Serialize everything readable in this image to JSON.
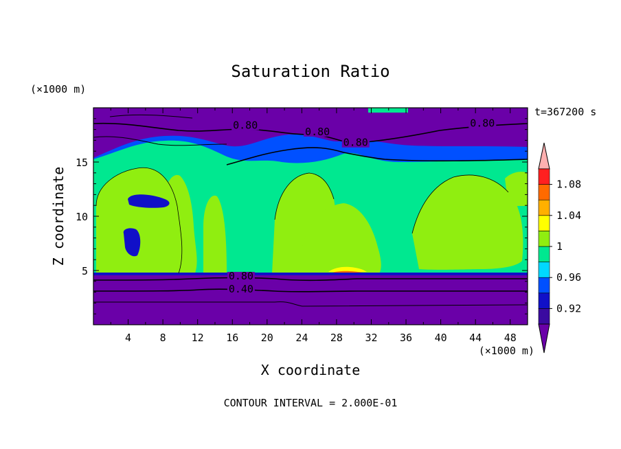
{
  "chart_data": {
    "type": "filled-contour",
    "title": "Saturation Ratio",
    "xlabel": "X coordinate",
    "ylabel": "Z coordinate",
    "x_unit": "(×1000 m)",
    "z_unit": "(×1000 m)",
    "time_label": "t=367200 s",
    "footer": "CONTOUR INTERVAL = 2.000E-01",
    "xlim": [
      0,
      50
    ],
    "zlim": [
      0,
      20
    ],
    "x_ticks": [
      "4",
      "8",
      "12",
      "16",
      "20",
      "24",
      "28",
      "32",
      "36",
      "40",
      "44",
      "48"
    ],
    "z_ticks": [
      "5",
      "10",
      "15"
    ],
    "colorbar": {
      "bins": [
        {
          "range": [
            null,
            0.9
          ],
          "color": "#6a00a8"
        },
        {
          "range": [
            0.9,
            0.92
          ],
          "color": "#3a0aa0"
        },
        {
          "range": [
            0.92,
            0.94
          ],
          "color": "#1010c8"
        },
        {
          "range": [
            0.94,
            0.96
          ],
          "color": "#0050ff"
        },
        {
          "range": [
            0.96,
            0.98
          ],
          "color": "#00d8ff"
        },
        {
          "range": [
            0.98,
            1.0
          ],
          "color": "#00e890"
        },
        {
          "range": [
            1.0,
            1.02
          ],
          "color": "#90ee10"
        },
        {
          "range": [
            1.02,
            1.04
          ],
          "color": "#ffff00"
        },
        {
          "range": [
            1.04,
            1.06
          ],
          "color": "#ffb000"
        },
        {
          "range": [
            1.06,
            1.08
          ],
          "color": "#ff6a00"
        },
        {
          "range": [
            1.08,
            1.1
          ],
          "color": "#ff2020"
        },
        {
          "range": [
            1.1,
            null
          ],
          "color": "#ffb0b0"
        }
      ],
      "labels": [
        "1.08",
        "1.04",
        "1",
        "0.96",
        "0.92"
      ]
    },
    "contour_labels": [
      {
        "text": "0.80",
        "x": 17.5,
        "z": 18.2
      },
      {
        "text": "0.80",
        "x": 25.8,
        "z": 17.6
      },
      {
        "text": "0.80",
        "x": 30.2,
        "z": 16.6
      },
      {
        "text": "0.80",
        "x": 44.8,
        "z": 18.4
      },
      {
        "text": "0.80",
        "x": 17.0,
        "z": 4.3
      },
      {
        "text": "0.40",
        "x": 17.0,
        "z": 3.1
      }
    ]
  }
}
